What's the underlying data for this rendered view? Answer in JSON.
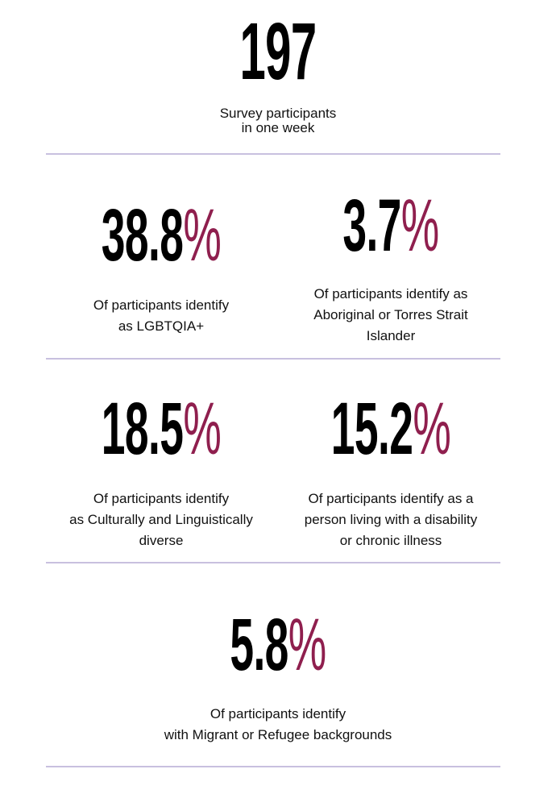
{
  "total": {
    "number": "197",
    "label_lines": [
      "Survey participants",
      "in one week"
    ]
  },
  "stats": [
    {
      "value": "38.8",
      "suffix": "%",
      "label_lines": [
        "Of participants identify",
        "as LGBTQIA+"
      ]
    },
    {
      "value": "3.7",
      "suffix": "%",
      "label_lines": [
        "Of participants identify as",
        "Aboriginal or Torres Strait",
        "Islander"
      ]
    },
    {
      "value": "18.5",
      "suffix": "%",
      "label_lines": [
        "Of participants identify",
        "as Culturally and Linguistically",
        "diverse"
      ]
    },
    {
      "value": "15.2",
      "suffix": "%",
      "label_lines": [
        "Of participants identify as a",
        "person living with a disability",
        "or chronic illness"
      ]
    },
    {
      "value": "5.8",
      "suffix": "%",
      "label_lines": [
        "Of participants identify",
        "with Migrant or Refugee backgrounds"
      ]
    }
  ],
  "colors": {
    "accent": "#8f1f4e",
    "divider": "#c8c0df",
    "text": "#111111"
  }
}
